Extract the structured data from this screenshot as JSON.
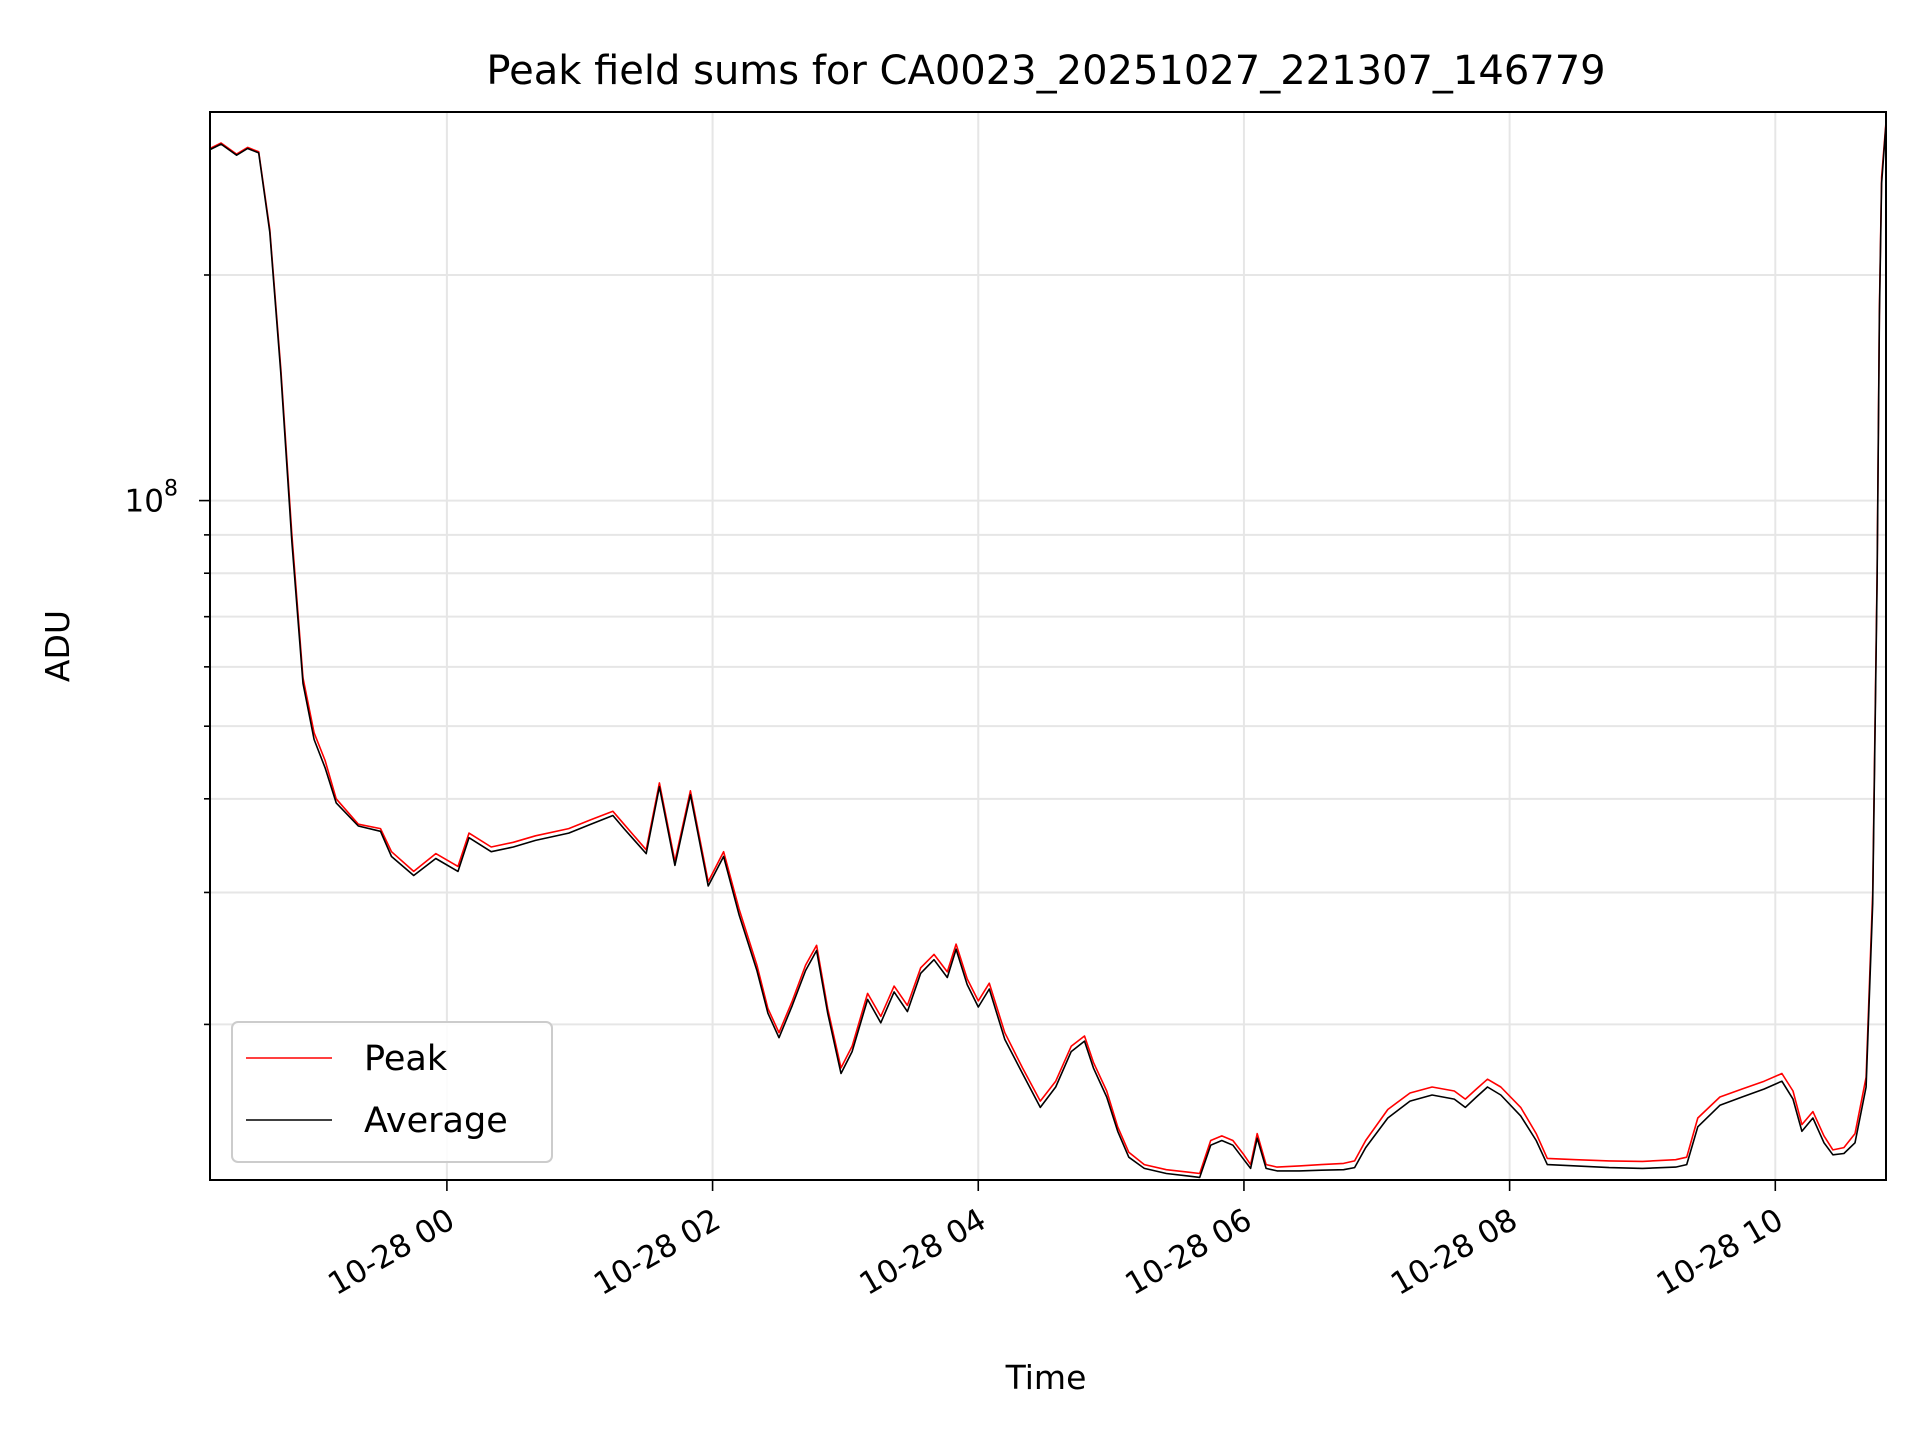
{
  "chart_data": {
    "type": "line",
    "title": "Peak field sums for CA0023_20251027_221307_146779",
    "xlabel": "Time",
    "ylabel": "ADU",
    "x_axis": {
      "kind": "time",
      "xlim": [
        "2025-10-27 22:13",
        "2025-10-28 10:50"
      ]
    },
    "y_axis": {
      "scale": "log",
      "ylim": [
        12400000,
        330000000
      ]
    },
    "xticks": [
      {
        "value": "2025-10-28 00:00",
        "label": "10-28 00"
      },
      {
        "value": "2025-10-28 02:00",
        "label": "10-28 02"
      },
      {
        "value": "2025-10-28 04:00",
        "label": "10-28 04"
      },
      {
        "value": "2025-10-28 06:00",
        "label": "10-28 06"
      },
      {
        "value": "2025-10-28 08:00",
        "label": "10-28 08"
      },
      {
        "value": "2025-10-28 10:00",
        "label": "10-28 10"
      }
    ],
    "yticks_major": [
      {
        "value": 100000000,
        "label_base": "10",
        "label_exp": "8"
      }
    ],
    "yticks_minor": [
      20000000,
      30000000,
      40000000,
      50000000,
      60000000,
      70000000,
      80000000,
      90000000,
      200000000
    ],
    "grid": true,
    "legend": {
      "placement": "lower-left"
    },
    "series": [
      {
        "name": "Peak",
        "color": "#ff0000",
        "points": [
          [
            "2025-10-27 22:13",
            295000000
          ],
          [
            "2025-10-27 22:18",
            300000000
          ],
          [
            "2025-10-27 22:25",
            290000000
          ],
          [
            "2025-10-27 22:30",
            296000000
          ],
          [
            "2025-10-27 22:35",
            292000000
          ],
          [
            "2025-10-27 22:40",
            230000000
          ],
          [
            "2025-10-27 22:45",
            150000000
          ],
          [
            "2025-10-27 22:50",
            90000000
          ],
          [
            "2025-10-27 22:55",
            58000000
          ],
          [
            "2025-10-27 23:00",
            49000000
          ],
          [
            "2025-10-27 23:05",
            45000000
          ],
          [
            "2025-10-27 23:10",
            40000000
          ],
          [
            "2025-10-27 23:20",
            37000000
          ],
          [
            "2025-10-27 23:30",
            36500000
          ],
          [
            "2025-10-27 23:35",
            34000000
          ],
          [
            "2025-10-27 23:45",
            32000000
          ],
          [
            "2025-10-27 23:55",
            33800000
          ],
          [
            "2025-10-28 00:05",
            32500000
          ],
          [
            "2025-10-28 00:10",
            36000000
          ],
          [
            "2025-10-28 00:20",
            34500000
          ],
          [
            "2025-10-28 00:30",
            35000000
          ],
          [
            "2025-10-28 00:40",
            35700000
          ],
          [
            "2025-10-28 00:55",
            36500000
          ],
          [
            "2025-10-28 01:05",
            37500000
          ],
          [
            "2025-10-28 01:15",
            38500000
          ],
          [
            "2025-10-28 01:20",
            37000000
          ],
          [
            "2025-10-28 01:30",
            34200000
          ],
          [
            "2025-10-28 01:36",
            42000000
          ],
          [
            "2025-10-28 01:43",
            33000000
          ],
          [
            "2025-10-28 01:50",
            41000000
          ],
          [
            "2025-10-28 01:58",
            31000000
          ],
          [
            "2025-10-28 02:05",
            34000000
          ],
          [
            "2025-10-28 02:12",
            28500000
          ],
          [
            "2025-10-28 02:20",
            24000000
          ],
          [
            "2025-10-28 02:25",
            21000000
          ],
          [
            "2025-10-28 02:30",
            19500000
          ],
          [
            "2025-10-28 02:36",
            21500000
          ],
          [
            "2025-10-28 02:42",
            24000000
          ],
          [
            "2025-10-28 02:47",
            25500000
          ],
          [
            "2025-10-28 02:52",
            21000000
          ],
          [
            "2025-10-28 02:58",
            17500000
          ],
          [
            "2025-10-28 03:03",
            18700000
          ],
          [
            "2025-10-28 03:10",
            22000000
          ],
          [
            "2025-10-28 03:16",
            20500000
          ],
          [
            "2025-10-28 03:22",
            22500000
          ],
          [
            "2025-10-28 03:28",
            21200000
          ],
          [
            "2025-10-28 03:34",
            23800000
          ],
          [
            "2025-10-28 03:40",
            24800000
          ],
          [
            "2025-10-28 03:46",
            23500000
          ],
          [
            "2025-10-28 03:50",
            25600000
          ],
          [
            "2025-10-28 03:55",
            23000000
          ],
          [
            "2025-10-28 04:00",
            21500000
          ],
          [
            "2025-10-28 04:05",
            22700000
          ],
          [
            "2025-10-28 04:12",
            19500000
          ],
          [
            "2025-10-28 04:20",
            17500000
          ],
          [
            "2025-10-28 04:28",
            15800000
          ],
          [
            "2025-10-28 04:35",
            16800000
          ],
          [
            "2025-10-28 04:42",
            18700000
          ],
          [
            "2025-10-28 04:48",
            19300000
          ],
          [
            "2025-10-28 04:52",
            17800000
          ],
          [
            "2025-10-28 04:58",
            16300000
          ],
          [
            "2025-10-28 05:03",
            14600000
          ],
          [
            "2025-10-28 05:08",
            13500000
          ],
          [
            "2025-10-28 05:15",
            13000000
          ],
          [
            "2025-10-28 05:25",
            12800000
          ],
          [
            "2025-10-28 05:35",
            12700000
          ],
          [
            "2025-10-28 05:40",
            12650000
          ],
          [
            "2025-10-28 05:45",
            14000000
          ],
          [
            "2025-10-28 05:50",
            14200000
          ],
          [
            "2025-10-28 05:55",
            14000000
          ],
          [
            "2025-10-28 06:00",
            13400000
          ],
          [
            "2025-10-28 06:03",
            13000000
          ],
          [
            "2025-10-28 06:06",
            14300000
          ],
          [
            "2025-10-28 06:10",
            13000000
          ],
          [
            "2025-10-28 06:15",
            12900000
          ],
          [
            "2025-10-28 06:25",
            12950000
          ],
          [
            "2025-10-28 06:35",
            13000000
          ],
          [
            "2025-10-28 06:45",
            13050000
          ],
          [
            "2025-10-28 06:50",
            13150000
          ],
          [
            "2025-10-28 06:55",
            14000000
          ],
          [
            "2025-10-28 07:05",
            15400000
          ],
          [
            "2025-10-28 07:15",
            16200000
          ],
          [
            "2025-10-28 07:25",
            16500000
          ],
          [
            "2025-10-28 07:35",
            16300000
          ],
          [
            "2025-10-28 07:40",
            15900000
          ],
          [
            "2025-10-28 07:45",
            16400000
          ],
          [
            "2025-10-28 07:50",
            16900000
          ],
          [
            "2025-10-28 07:56",
            16500000
          ],
          [
            "2025-10-28 08:05",
            15500000
          ],
          [
            "2025-10-28 08:12",
            14300000
          ],
          [
            "2025-10-28 08:17",
            13250000
          ],
          [
            "2025-10-28 08:30",
            13200000
          ],
          [
            "2025-10-28 08:45",
            13150000
          ],
          [
            "2025-10-28 09:00",
            13130000
          ],
          [
            "2025-10-28 09:15",
            13200000
          ],
          [
            "2025-10-28 09:20",
            13300000
          ],
          [
            "2025-10-28 09:25",
            15000000
          ],
          [
            "2025-10-28 09:35",
            16000000
          ],
          [
            "2025-10-28 09:45",
            16400000
          ],
          [
            "2025-10-28 09:55",
            16800000
          ],
          [
            "2025-10-28 10:03",
            17200000
          ],
          [
            "2025-10-28 10:08",
            16300000
          ],
          [
            "2025-10-28 10:12",
            14700000
          ],
          [
            "2025-10-28 10:17",
            15300000
          ],
          [
            "2025-10-28 10:22",
            14200000
          ],
          [
            "2025-10-28 10:26",
            13600000
          ],
          [
            "2025-10-28 10:31",
            13700000
          ],
          [
            "2025-10-28 10:36",
            14300000
          ],
          [
            "2025-10-28 10:41",
            17000000
          ],
          [
            "2025-10-28 10:44",
            30000000
          ],
          [
            "2025-10-28 10:46",
            80000000
          ],
          [
            "2025-10-28 10:47",
            180000000
          ],
          [
            "2025-10-28 10:48",
            270000000
          ],
          [
            "2025-10-28 10:50",
            320000000
          ]
        ]
      },
      {
        "name": "Average",
        "color": "#000000",
        "points": [
          [
            "2025-10-27 22:13",
            294000000
          ],
          [
            "2025-10-27 22:18",
            299000000
          ],
          [
            "2025-10-27 22:25",
            289000000
          ],
          [
            "2025-10-27 22:30",
            295000000
          ],
          [
            "2025-10-27 22:35",
            291000000
          ],
          [
            "2025-10-27 22:40",
            228000000
          ],
          [
            "2025-10-27 22:45",
            148000000
          ],
          [
            "2025-10-27 22:50",
            88000000
          ],
          [
            "2025-10-27 22:55",
            57000000
          ],
          [
            "2025-10-27 23:00",
            48000000
          ],
          [
            "2025-10-27 23:05",
            44000000
          ],
          [
            "2025-10-27 23:10",
            39500000
          ],
          [
            "2025-10-27 23:20",
            36800000
          ],
          [
            "2025-10-27 23:30",
            36200000
          ],
          [
            "2025-10-27 23:35",
            33500000
          ],
          [
            "2025-10-27 23:45",
            31600000
          ],
          [
            "2025-10-27 23:55",
            33300000
          ],
          [
            "2025-10-28 00:05",
            32000000
          ],
          [
            "2025-10-28 00:10",
            35500000
          ],
          [
            "2025-10-28 00:20",
            34000000
          ],
          [
            "2025-10-28 00:30",
            34500000
          ],
          [
            "2025-10-28 00:40",
            35200000
          ],
          [
            "2025-10-28 00:55",
            36000000
          ],
          [
            "2025-10-28 01:05",
            37000000
          ],
          [
            "2025-10-28 01:15",
            38000000
          ],
          [
            "2025-10-28 01:20",
            36500000
          ],
          [
            "2025-10-28 01:30",
            33800000
          ],
          [
            "2025-10-28 01:36",
            41500000
          ],
          [
            "2025-10-28 01:43",
            32600000
          ],
          [
            "2025-10-28 01:50",
            40500000
          ],
          [
            "2025-10-28 01:58",
            30600000
          ],
          [
            "2025-10-28 02:05",
            33500000
          ],
          [
            "2025-10-28 02:12",
            28000000
          ],
          [
            "2025-10-28 02:20",
            23600000
          ],
          [
            "2025-10-28 02:25",
            20700000
          ],
          [
            "2025-10-28 02:30",
            19200000
          ],
          [
            "2025-10-28 02:36",
            21200000
          ],
          [
            "2025-10-28 02:42",
            23600000
          ],
          [
            "2025-10-28 02:47",
            25100000
          ],
          [
            "2025-10-28 02:52",
            20700000
          ],
          [
            "2025-10-28 02:58",
            17200000
          ],
          [
            "2025-10-28 03:03",
            18400000
          ],
          [
            "2025-10-28 03:10",
            21600000
          ],
          [
            "2025-10-28 03:16",
            20100000
          ],
          [
            "2025-10-28 03:22",
            22100000
          ],
          [
            "2025-10-28 03:28",
            20800000
          ],
          [
            "2025-10-28 03:34",
            23400000
          ],
          [
            "2025-10-28 03:40",
            24400000
          ],
          [
            "2025-10-28 03:46",
            23100000
          ],
          [
            "2025-10-28 03:50",
            25200000
          ],
          [
            "2025-10-28 03:55",
            22600000
          ],
          [
            "2025-10-28 04:00",
            21100000
          ],
          [
            "2025-10-28 04:05",
            22300000
          ],
          [
            "2025-10-28 04:12",
            19100000
          ],
          [
            "2025-10-28 04:20",
            17200000
          ],
          [
            "2025-10-28 04:28",
            15500000
          ],
          [
            "2025-10-28 04:35",
            16500000
          ],
          [
            "2025-10-28 04:42",
            18400000
          ],
          [
            "2025-10-28 04:48",
            19000000
          ],
          [
            "2025-10-28 04:52",
            17500000
          ],
          [
            "2025-10-28 04:58",
            16000000
          ],
          [
            "2025-10-28 05:03",
            14400000
          ],
          [
            "2025-10-28 05:08",
            13300000
          ],
          [
            "2025-10-28 05:15",
            12850000
          ],
          [
            "2025-10-28 05:25",
            12650000
          ],
          [
            "2025-10-28 05:35",
            12550000
          ],
          [
            "2025-10-28 05:40",
            12500000
          ],
          [
            "2025-10-28 05:45",
            13800000
          ],
          [
            "2025-10-28 05:50",
            14000000
          ],
          [
            "2025-10-28 05:55",
            13800000
          ],
          [
            "2025-10-28 06:00",
            13200000
          ],
          [
            "2025-10-28 06:03",
            12850000
          ],
          [
            "2025-10-28 06:06",
            14100000
          ],
          [
            "2025-10-28 06:10",
            12850000
          ],
          [
            "2025-10-28 06:15",
            12750000
          ],
          [
            "2025-10-28 06:25",
            12750000
          ],
          [
            "2025-10-28 06:35",
            12780000
          ],
          [
            "2025-10-28 06:45",
            12800000
          ],
          [
            "2025-10-28 06:50",
            12880000
          ],
          [
            "2025-10-28 06:55",
            13700000
          ],
          [
            "2025-10-28 07:05",
            15000000
          ],
          [
            "2025-10-28 07:15",
            15800000
          ],
          [
            "2025-10-28 07:25",
            16100000
          ],
          [
            "2025-10-28 07:35",
            15900000
          ],
          [
            "2025-10-28 07:40",
            15500000
          ],
          [
            "2025-10-28 07:45",
            16000000
          ],
          [
            "2025-10-28 07:50",
            16500000
          ],
          [
            "2025-10-28 07:56",
            16100000
          ],
          [
            "2025-10-28 08:05",
            15100000
          ],
          [
            "2025-10-28 08:12",
            14000000
          ],
          [
            "2025-10-28 08:17",
            13000000
          ],
          [
            "2025-10-28 08:30",
            12950000
          ],
          [
            "2025-10-28 08:45",
            12880000
          ],
          [
            "2025-10-28 09:00",
            12850000
          ],
          [
            "2025-10-28 09:15",
            12900000
          ],
          [
            "2025-10-28 09:20",
            13000000
          ],
          [
            "2025-10-28 09:25",
            14600000
          ],
          [
            "2025-10-28 09:35",
            15600000
          ],
          [
            "2025-10-28 09:45",
            16000000
          ],
          [
            "2025-10-28 09:55",
            16400000
          ],
          [
            "2025-10-28 10:03",
            16800000
          ],
          [
            "2025-10-28 10:08",
            15900000
          ],
          [
            "2025-10-28 10:12",
            14400000
          ],
          [
            "2025-10-28 10:17",
            15000000
          ],
          [
            "2025-10-28 10:22",
            13900000
          ],
          [
            "2025-10-28 10:26",
            13400000
          ],
          [
            "2025-10-28 10:31",
            13450000
          ],
          [
            "2025-10-28 10:36",
            13900000
          ],
          [
            "2025-10-28 10:41",
            16500000
          ],
          [
            "2025-10-28 10:44",
            29000000
          ],
          [
            "2025-10-28 10:46",
            78000000
          ],
          [
            "2025-10-28 10:47",
            176000000
          ],
          [
            "2025-10-28 10:48",
            265000000
          ],
          [
            "2025-10-28 10:50",
            318000000
          ]
        ]
      }
    ]
  }
}
